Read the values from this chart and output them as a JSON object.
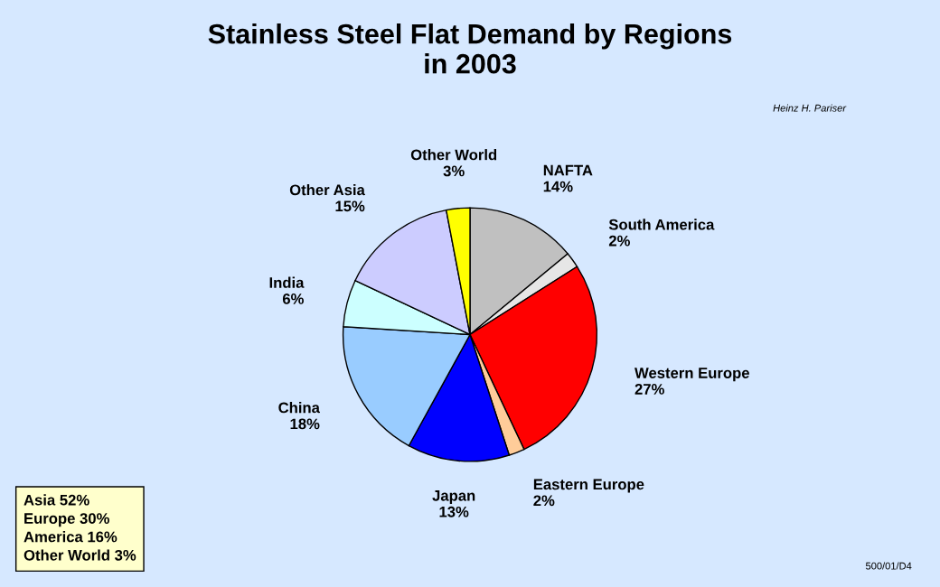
{
  "chart_data": {
    "type": "pie",
    "title": "Stainless Steel Flat Demand by Regions\nin 2003",
    "categories": [
      "NAFTA",
      "South America",
      "Western Europe",
      "Eastern Europe",
      "Japan",
      "China",
      "India",
      "Other Asia",
      "Other World"
    ],
    "values": [
      14,
      2,
      27,
      2,
      13,
      18,
      6,
      15,
      3
    ],
    "value_labels": [
      "14%",
      "2%",
      "27%",
      "2%",
      "13%",
      "18%",
      "6%",
      "15%",
      "3%"
    ],
    "colors": [
      "#c0c0c0",
      "#e6e6e6",
      "#ff0000",
      "#ffcc99",
      "#0000ff",
      "#99ccff",
      "#ccffff",
      "#ccccff",
      "#ffff00"
    ],
    "annotations": [
      "Heinz H. Pariser",
      "Asia 52%",
      "Europe 30%",
      "America 16%",
      "Other World 3%",
      "500/01/D4"
    ],
    "legend": false
  }
}
